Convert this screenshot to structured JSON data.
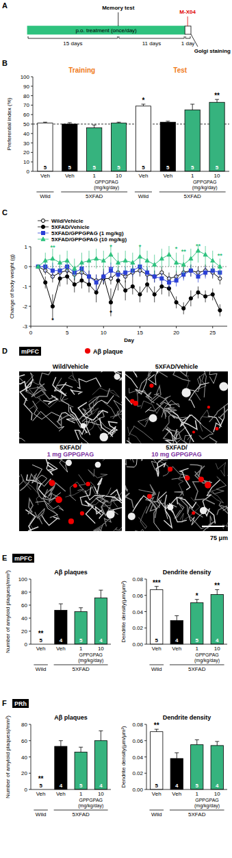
{
  "panel_a": {
    "label": "A",
    "treatment": "p.o. treatment (once/day)",
    "events": {
      "memory_test": "Memory test",
      "injection": "M-X04",
      "staining": "Golgi staining"
    },
    "periods": [
      {
        "days": 15,
        "label": "15 days"
      },
      {
        "days": 11,
        "label": "11 days"
      },
      {
        "days": 1,
        "label": "1 day"
      }
    ]
  },
  "panel_d": {
    "label": "D",
    "region": "mPFC",
    "legend": "Aβ plaque",
    "images": [
      {
        "title": [
          "Wild/Vehicle"
        ]
      },
      {
        "title": [
          "5XFAD/Vehicle"
        ]
      },
      {
        "title": [
          "5XFAD/",
          "1 mg GPPGPAG"
        ]
      },
      {
        "title": [
          "5XFAD/",
          "10 mg GPPGPAG"
        ]
      }
    ],
    "scale_bar": "75 μm"
  },
  "chart_data": [
    {
      "type": "bar",
      "panel_label": "B",
      "ylabel": "Preferential index (%)",
      "group_titles": [
        "Training",
        "Test"
      ],
      "categories": [
        "Veh",
        "Veh",
        "1",
        "10",
        "Veh",
        "Veh",
        "1",
        "10"
      ],
      "group_labels": [
        "Wild",
        "5XFAD"
      ],
      "dose_label": [
        "GPPGPAG",
        "(mg/kg/day)"
      ],
      "values": [
        51,
        50,
        46,
        51,
        69,
        52,
        65,
        73
      ],
      "errors": [
        1,
        1.5,
        3,
        1,
        2,
        1,
        6,
        3
      ],
      "n": [
        5,
        5,
        5,
        5,
        5,
        5,
        5,
        5
      ],
      "significance": [
        null,
        null,
        null,
        null,
        "*",
        null,
        null,
        "**"
      ],
      "colors": [
        "#ffffff",
        "#000000",
        "#36b37e",
        "#36b37e",
        "#ffffff",
        "#000000",
        "#36b37e",
        "#36b37e"
      ],
      "ylim": [
        0,
        100
      ],
      "yticks": [
        0,
        10,
        20,
        30,
        40,
        50,
        60,
        70,
        80,
        90,
        100
      ],
      "reference_line": 50
    },
    {
      "type": "line",
      "panel_label": "C",
      "xlabel": "Day",
      "ylabel": "Change of body weight (g)",
      "legend": "top-left",
      "xlim": [
        0,
        27
      ],
      "xticks": [
        0,
        5,
        10,
        15,
        20,
        25
      ],
      "ylim": [
        -3,
        1
      ],
      "yticks": [
        -3,
        -2,
        -1,
        0,
        1
      ],
      "reference_line": 0,
      "x": [
        1,
        2,
        3,
        4,
        5,
        6,
        7,
        8,
        9,
        10,
        11,
        12,
        13,
        14,
        15,
        16,
        17,
        18,
        19,
        20,
        21,
        22,
        23,
        24,
        25,
        26
      ],
      "series": [
        {
          "name": "Wild/Vehicle",
          "color": "#000000",
          "marker": "circle-open",
          "line_style": "solid",
          "values": [
            0,
            -0.2,
            -0.5,
            -0.3,
            -0.2,
            -0.4,
            -0.3,
            -0.5,
            -0.7,
            -0.6,
            -0.6,
            -0.3,
            -0.5,
            -0.3,
            -0.2,
            -0.4,
            -0.5,
            -0.3,
            -0.6,
            -0.5,
            -0.3,
            -0.2,
            -0.3,
            -0.2,
            -0.3,
            -0.6
          ],
          "errors": [
            0,
            0.2,
            0.3,
            0.3,
            0.3,
            0.3,
            0.3,
            0.3,
            0.3,
            0.3,
            0.3,
            0.3,
            0.3,
            0.3,
            0.3,
            0.3,
            0.3,
            0.3,
            0.3,
            0.3,
            0.3,
            0.3,
            0.3,
            0.3,
            0.3,
            0.3
          ]
        },
        {
          "name": "5XFAD/Vehicle",
          "color": "#000000",
          "marker": "circle",
          "line_style": "solid",
          "values": [
            0,
            -0.8,
            -2.0,
            -0.6,
            -0.5,
            -0.9,
            -0.7,
            -0.9,
            -1.3,
            -0.5,
            -1.8,
            -0.7,
            -1.2,
            -1.0,
            -1.4,
            -0.9,
            -1.4,
            -1.0,
            -1.1,
            -1.8,
            -2.1,
            -1.6,
            -1.3,
            -1.5,
            -1.4,
            -2.2
          ],
          "errors": [
            0,
            0.3,
            0.6,
            0.4,
            0.4,
            0.4,
            0.4,
            0.4,
            0.5,
            0.4,
            0.7,
            0.5,
            0.5,
            0.4,
            0.4,
            0.4,
            0.4,
            0.4,
            0.4,
            0.3,
            0.3,
            0.4,
            0.3,
            0.3,
            0.3,
            0.3
          ]
        },
        {
          "name": "5XFAD/GPPGPAG (1 mg/kg)",
          "color": "#2a3fd6",
          "marker": "square",
          "line_style": "solid",
          "values": [
            0,
            0,
            -0.2,
            -0.2,
            0,
            -0.3,
            -0.1,
            -0.5,
            -0.8,
            -0.5,
            -0.2,
            -0.4,
            -0.3,
            -0.2,
            0,
            -0.3,
            -0.5,
            -0.6,
            -0.8,
            -0.7,
            -0.4,
            -0.2,
            -0.5,
            -0.3,
            -0.2,
            -0.3
          ],
          "errors": [
            0,
            0.3,
            0.4,
            0.3,
            0.3,
            0.3,
            0.4,
            0.3,
            0.4,
            0.3,
            0.4,
            0.3,
            0.3,
            0.3,
            0.4,
            0.3,
            0.3,
            0.3,
            0.3,
            0.3,
            0.3,
            0.3,
            0.3,
            0.3,
            0.3,
            0.3
          ]
        },
        {
          "name": "5XFAD/GPPGPAG (10 mg/kg)",
          "color": "#2ec27e",
          "marker": "triangle",
          "line_style": "solid",
          "values": [
            0,
            0.3,
            0.4,
            0.2,
            0.3,
            -0.1,
            0.2,
            0.3,
            0.4,
            0.3,
            0.6,
            0.2,
            0.3,
            0.2,
            0.5,
            0.3,
            0.1,
            0.4,
            0.6,
            0.2,
            0.1,
            0.4,
            0.8,
            0.6,
            0.3,
            0
          ],
          "errors": [
            0,
            0.4,
            0.5,
            0.4,
            0.5,
            0.5,
            0.5,
            0.5,
            0.5,
            0.5,
            0.5,
            0.5,
            0.5,
            0.5,
            0.6,
            0.5,
            0.5,
            0.5,
            0.6,
            0.5,
            0.5,
            0.5,
            0.6,
            0.6,
            0.5,
            0.4
          ]
        }
      ],
      "annotations": [
        {
          "x": 3,
          "y": 0.95,
          "text": "**",
          "color": "#2ec27e"
        },
        {
          "x": 11,
          "y": 1.0,
          "text": "*",
          "color": "#2ec27e"
        },
        {
          "x": 15,
          "y": 1.0,
          "text": "*",
          "color": "#2ec27e"
        },
        {
          "x": 20,
          "y": 0.9,
          "text": "*",
          "color": "#2ec27e"
        },
        {
          "x": 21,
          "y": 0.75,
          "text": "**",
          "color": "#2ec27e"
        },
        {
          "x": 23,
          "y": 1.05,
          "text": "**",
          "color": "#2ec27e"
        },
        {
          "x": 26,
          "y": 0.55,
          "text": "**",
          "color": "#2ec27e"
        },
        {
          "x": 11,
          "y": -0.1,
          "text": "**",
          "color": "#2a3fd6"
        },
        {
          "x": 3,
          "y": -2.7,
          "text": "*",
          "color": "#000000"
        },
        {
          "x": 11,
          "y": -2.3,
          "text": "*",
          "color": "#000000"
        }
      ]
    },
    {
      "type": "bar",
      "panel_label": "E",
      "region": "mPFC",
      "title": "Aβ plaques",
      "ylabel": "Number of amyloid plaques(/mm²)",
      "categories": [
        "Veh",
        "Veh",
        "1",
        "10"
      ],
      "group_labels": [
        "Wild",
        "5XFAD"
      ],
      "dose_label": [
        "GPPGPAG",
        "(mg/kg/day)"
      ],
      "values": [
        0,
        52,
        50,
        71
      ],
      "errors": [
        0,
        10,
        6,
        12
      ],
      "n": [
        5,
        4,
        5,
        4
      ],
      "significance": [
        "**",
        null,
        null,
        null
      ],
      "colors": [
        "#ffffff",
        "#000000",
        "#36b37e",
        "#36b37e"
      ],
      "ylim": [
        0,
        100
      ],
      "yticks": [
        0,
        20,
        40,
        60,
        80,
        100
      ]
    },
    {
      "type": "bar",
      "title": "Dendrite density",
      "ylabel": "Dendrite density(μm/μm²)",
      "categories": [
        "Veh",
        "Veh",
        "1",
        "10"
      ],
      "group_labels": [
        "Wild",
        "5XFAD"
      ],
      "dose_label": [
        "GPPGPAG",
        "(mg/kg/day)"
      ],
      "values": [
        0.067,
        0.029,
        0.051,
        0.061
      ],
      "errors": [
        0.004,
        0.006,
        0.004,
        0.006
      ],
      "n": [
        5,
        4,
        5,
        4
      ],
      "significance": [
        "***",
        null,
        "*",
        "**"
      ],
      "colors": [
        "#ffffff",
        "#000000",
        "#36b37e",
        "#36b37e"
      ],
      "ylim": [
        0,
        0.08
      ],
      "yticks": [
        {
          "value": 0,
          "label": "0.00"
        },
        {
          "value": 0.02,
          "label": "0.02"
        },
        {
          "value": 0.04,
          "label": "0.04"
        },
        {
          "value": 0.06,
          "label": "0.06"
        },
        {
          "value": 0.08,
          "label": "0.08"
        }
      ]
    },
    {
      "type": "bar",
      "panel_label": "F",
      "region": "PRh",
      "title": "Aβ plaques",
      "ylabel": "Number of amyloid plaques(/mm²)",
      "categories": [
        "Veh",
        "Veh",
        "1",
        "10"
      ],
      "group_labels": [
        "Wild",
        "5XFAD"
      ],
      "dose_label": [
        "GPPGPAG",
        "(mg/kg/day)"
      ],
      "values": [
        0,
        53,
        46,
        60
      ],
      "errors": [
        0,
        7,
        6,
        12
      ],
      "n": [
        5,
        4,
        5,
        4
      ],
      "significance": [
        "**",
        null,
        null,
        null
      ],
      "colors": [
        "#ffffff",
        "#000000",
        "#36b37e",
        "#36b37e"
      ],
      "ylim": [
        0,
        80
      ],
      "yticks": [
        0,
        20,
        40,
        60,
        80
      ]
    },
    {
      "type": "bar",
      "title": "Dendrite density",
      "ylabel": "Dendrite density(μm/μm²)",
      "categories": [
        "Veh",
        "Veh",
        "1",
        "10"
      ],
      "group_labels": [
        "Wild",
        "5XFAD"
      ],
      "dose_label": [
        "GPPGPAG",
        "(mg/kg/day)"
      ],
      "values": [
        0.071,
        0.038,
        0.055,
        0.054
      ],
      "errors": [
        0.003,
        0.007,
        0.006,
        0.005
      ],
      "n": [
        5,
        4,
        5,
        4
      ],
      "significance": [
        "**",
        null,
        null,
        null
      ],
      "colors": [
        "#ffffff",
        "#000000",
        "#36b37e",
        "#36b37e"
      ],
      "ylim": [
        0,
        0.08
      ],
      "yticks": [
        {
          "value": 0,
          "label": "0.00"
        },
        {
          "value": 0.02,
          "label": "0.02"
        },
        {
          "value": 0.04,
          "label": "0.04"
        },
        {
          "value": 0.06,
          "label": "0.06"
        },
        {
          "value": 0.08,
          "label": "0.08"
        }
      ]
    }
  ]
}
